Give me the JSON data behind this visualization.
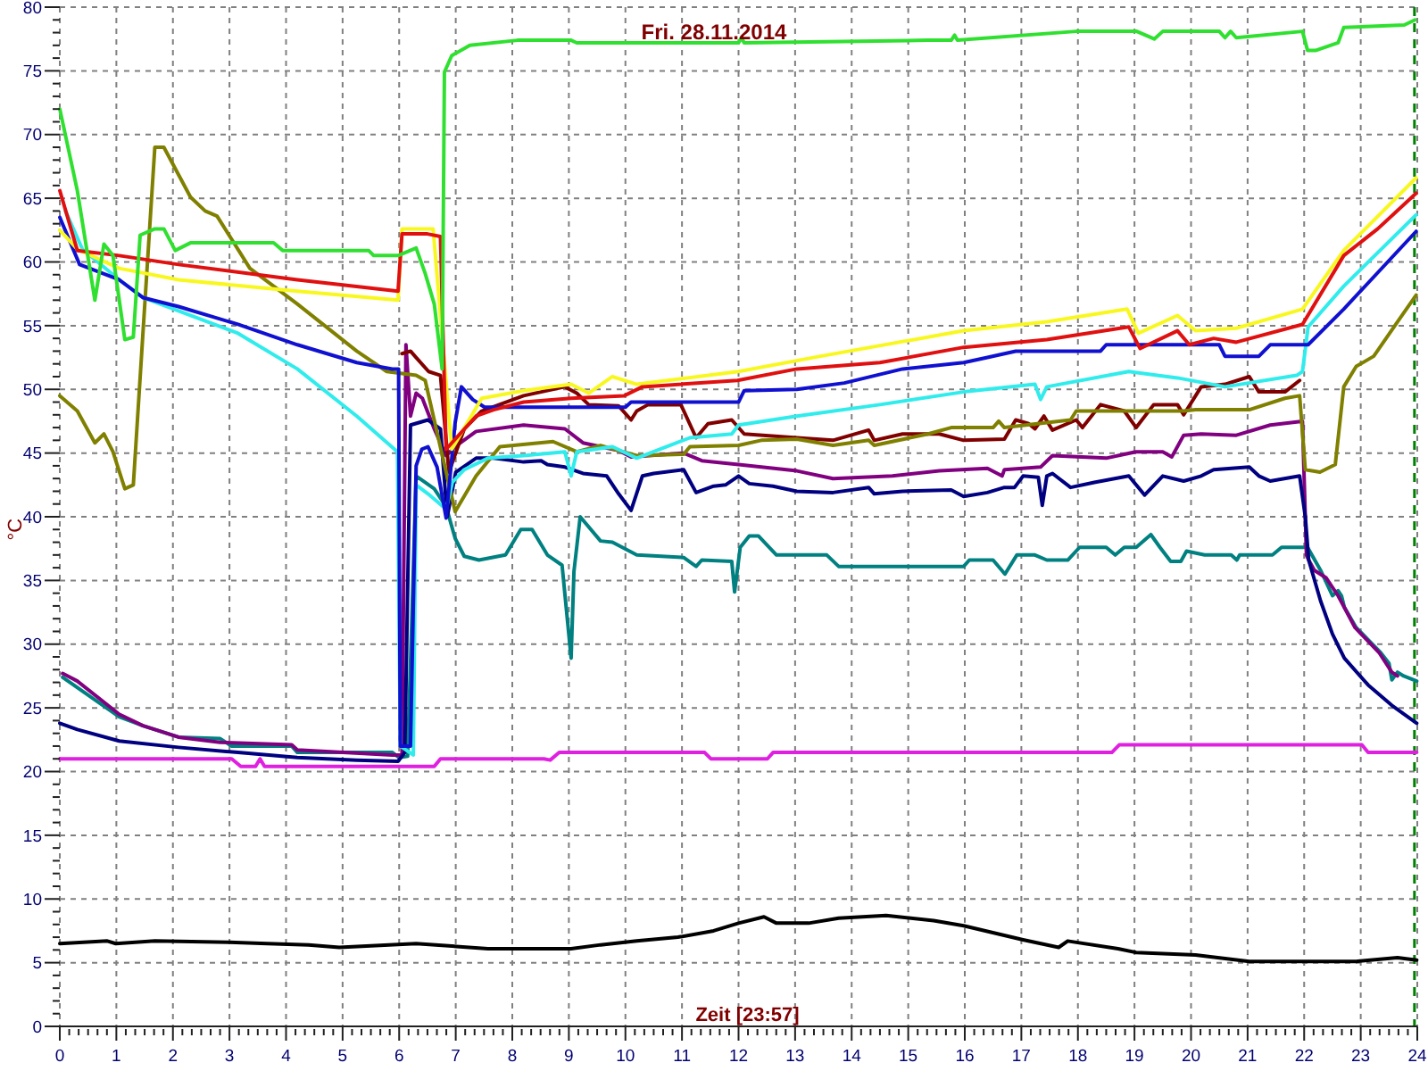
{
  "chart_data": {
    "type": "line",
    "title": "Fri. 28.11.2014",
    "xlabel": "Zeit [23:57]",
    "ylabel": "°C",
    "xlim": [
      0,
      24
    ],
    "ylim": [
      0,
      80
    ],
    "grid": true,
    "xticks": [
      0,
      {
        "value": 0.1667,
        "label": null
      },
      {
        "value": 0.3333,
        "label": null
      },
      {
        "value": 0.5,
        "label": null
      },
      {
        "value": 0.6667,
        "label": null
      },
      {
        "value": 0.8333,
        "label": null
      },
      1,
      {
        "value": 1.1667,
        "label": null
      },
      {
        "value": 1.3333,
        "label": null
      },
      {
        "value": 1.5,
        "label": null
      },
      {
        "value": 1.6667,
        "label": null
      },
      {
        "value": 1.8333,
        "label": null
      },
      2,
      {
        "value": 2.1667,
        "label": null
      },
      {
        "value": 2.3333,
        "label": null
      },
      {
        "value": 2.5,
        "label": null
      },
      {
        "value": 2.6667,
        "label": null
      },
      {
        "value": 2.8333,
        "label": null
      },
      3,
      {
        "value": 3.1667,
        "label": null
      },
      {
        "value": 3.3333,
        "label": null
      },
      {
        "value": 3.5,
        "label": null
      },
      {
        "value": 3.6667,
        "label": null
      },
      {
        "value": 3.8333,
        "label": null
      },
      4,
      {
        "value": 4.1667,
        "label": null
      },
      {
        "value": 4.3333,
        "label": null
      },
      {
        "value": 4.5,
        "label": null
      },
      {
        "value": 4.6667,
        "label": null
      },
      {
        "value": 4.8333,
        "label": null
      },
      5,
      {
        "value": 5.1667,
        "label": null
      },
      {
        "value": 5.3333,
        "label": null
      },
      {
        "value": 5.5,
        "label": null
      },
      {
        "value": 5.6667,
        "label": null
      },
      {
        "value": 5.8333,
        "label": null
      },
      6,
      {
        "value": 6.1667,
        "label": null
      },
      {
        "value": 6.3333,
        "label": null
      },
      {
        "value": 6.5,
        "label": null
      },
      {
        "value": 6.6667,
        "label": null
      },
      {
        "value": 6.8333,
        "label": null
      },
      7,
      {
        "value": 7.1667,
        "label": null
      },
      {
        "value": 7.3333,
        "label": null
      },
      {
        "value": 7.5,
        "label": null
      },
      {
        "value": 7.6667,
        "label": null
      },
      {
        "value": 7.8333,
        "label": null
      },
      8,
      {
        "value": 8.1667,
        "label": null
      },
      {
        "value": 8.3333,
        "label": null
      },
      {
        "value": 8.5,
        "label": null
      },
      {
        "value": 8.6667,
        "label": null
      },
      {
        "value": 8.8333,
        "label": null
      },
      9,
      {
        "value": 9.1667,
        "label": null
      },
      {
        "value": 9.3333,
        "label": null
      },
      {
        "value": 9.5,
        "label": null
      },
      {
        "value": 9.6667,
        "label": null
      },
      {
        "value": 9.8333,
        "label": null
      },
      10,
      {
        "value": 10.1667,
        "label": null
      },
      {
        "value": 10.3333,
        "label": null
      },
      {
        "value": 10.5,
        "label": null
      },
      {
        "value": 10.6667,
        "label": null
      },
      {
        "value": 10.8333,
        "label": null
      },
      11,
      {
        "value": 11.1667,
        "label": null
      },
      {
        "value": 11.3333,
        "label": null
      },
      {
        "value": 11.5,
        "label": null
      },
      {
        "value": 11.6667,
        "label": null
      },
      {
        "value": 11.8333,
        "label": null
      },
      12,
      {
        "value": 12.1667,
        "label": null
      },
      {
        "value": 12.3333,
        "label": null
      },
      {
        "value": 12.5,
        "label": null
      },
      {
        "value": 12.6667,
        "label": null
      },
      {
        "value": 12.8333,
        "label": null
      },
      13,
      {
        "value": 13.1667,
        "label": null
      },
      {
        "value": 13.3333,
        "label": null
      },
      {
        "value": 13.5,
        "label": null
      },
      {
        "value": 13.6667,
        "label": null
      },
      {
        "value": 13.8333,
        "label": null
      },
      14,
      {
        "value": 14.1667,
        "label": null
      },
      {
        "value": 14.3333,
        "label": null
      },
      {
        "value": 14.5,
        "label": null
      },
      {
        "value": 14.6667,
        "label": null
      },
      {
        "value": 14.8333,
        "label": null
      },
      15,
      {
        "value": 15.1667,
        "label": null
      },
      {
        "value": 15.3333,
        "label": null
      },
      {
        "value": 15.5,
        "label": null
      },
      {
        "value": 15.6667,
        "label": null
      },
      {
        "value": 15.8333,
        "label": null
      },
      16,
      {
        "value": 16.1667,
        "label": null
      },
      {
        "value": 16.3333,
        "label": null
      },
      {
        "value": 16.5,
        "label": null
      },
      {
        "value": 16.6667,
        "label": null
      },
      {
        "value": 16.8333,
        "label": null
      },
      17,
      {
        "value": 17.1667,
        "label": null
      },
      {
        "value": 17.3333,
        "label": null
      },
      {
        "value": 17.5,
        "label": null
      },
      {
        "value": 17.6667,
        "label": null
      },
      {
        "value": 17.8333,
        "label": null
      },
      18,
      {
        "value": 18.1667,
        "label": null
      },
      {
        "value": 18.3333,
        "label": null
      },
      {
        "value": 18.5,
        "label": null
      },
      {
        "value": 18.6667,
        "label": null
      },
      {
        "value": 18.8333,
        "label": null
      },
      19,
      {
        "value": 19.1667,
        "label": null
      },
      {
        "value": 19.3333,
        "label": null
      },
      {
        "value": 19.5,
        "label": null
      },
      {
        "value": 19.6667,
        "label": null
      },
      {
        "value": 19.8333,
        "label": null
      },
      20,
      {
        "value": 20.1667,
        "label": null
      },
      {
        "value": 20.3333,
        "label": null
      },
      {
        "value": 20.5,
        "label": null
      },
      {
        "value": 20.6667,
        "label": null
      },
      {
        "value": 20.8333,
        "label": null
      },
      21,
      {
        "value": 21.1667,
        "label": null
      },
      {
        "value": 21.3333,
        "label": null
      },
      {
        "value": 21.5,
        "label": null
      },
      {
        "value": 21.6667,
        "label": null
      },
      {
        "value": 21.8333,
        "label": null
      },
      22,
      {
        "value": 22.1667,
        "label": null
      },
      {
        "value": 22.3333,
        "label": null
      },
      {
        "value": 22.5,
        "label": null
      },
      {
        "value": 22.6667,
        "label": null
      },
      {
        "value": 22.8333,
        "label": null
      },
      23,
      {
        "value": 23.1667,
        "label": null
      },
      {
        "value": 23.3333,
        "label": null
      },
      {
        "value": 23.5,
        "label": null
      },
      {
        "value": 23.6667,
        "label": null
      },
      {
        "value": 23.8333,
        "label": null
      },
      24
    ],
    "yticks": [
      0,
      {
        "value": 1,
        "label": null
      },
      {
        "value": 2,
        "label": null
      },
      {
        "value": 3,
        "label": null
      },
      {
        "value": 4,
        "label": null
      },
      5,
      {
        "value": 6,
        "label": null
      },
      {
        "value": 7,
        "label": null
      },
      {
        "value": 8,
        "label": null
      },
      {
        "value": 9,
        "label": null
      },
      10,
      {
        "value": 11,
        "label": null
      },
      {
        "value": 12,
        "label": null
      },
      {
        "value": 13,
        "label": null
      },
      {
        "value": 14,
        "label": null
      },
      15,
      {
        "value": 16,
        "label": null
      },
      {
        "value": 17,
        "label": null
      },
      {
        "value": 18,
        "label": null
      },
      {
        "value": 19,
        "label": null
      },
      20,
      {
        "value": 21,
        "label": null
      },
      {
        "value": 22,
        "label": null
      },
      {
        "value": 23,
        "label": null
      },
      {
        "value": 24,
        "label": null
      },
      25,
      {
        "value": 26,
        "label": null
      },
      {
        "value": 27,
        "label": null
      },
      {
        "value": 28,
        "label": null
      },
      {
        "value": 29,
        "label": null
      },
      30,
      {
        "value": 31,
        "label": null
      },
      {
        "value": 32,
        "label": null
      },
      {
        "value": 33,
        "label": null
      },
      {
        "value": 34,
        "label": null
      },
      35,
      {
        "value": 36,
        "label": null
      },
      {
        "value": 37,
        "label": null
      },
      {
        "value": 38,
        "label": null
      },
      {
        "value": 39,
        "label": null
      },
      40,
      {
        "value": 41,
        "label": null
      },
      {
        "value": 42,
        "label": null
      },
      {
        "value": 43,
        "label": null
      },
      {
        "value": 44,
        "label": null
      },
      45,
      {
        "value": 46,
        "label": null
      },
      {
        "value": 47,
        "label": null
      },
      {
        "value": 48,
        "label": null
      },
      {
        "value": 49,
        "label": null
      },
      50,
      {
        "value": 51,
        "label": null
      },
      {
        "value": 52,
        "label": null
      },
      {
        "value": 53,
        "label": null
      },
      {
        "value": 54,
        "label": null
      },
      55,
      {
        "value": 56,
        "label": null
      },
      {
        "value": 57,
        "label": null
      },
      {
        "value": 58,
        "label": null
      },
      {
        "value": 59,
        "label": null
      },
      60,
      {
        "value": 61,
        "label": null
      },
      {
        "value": 62,
        "label": null
      },
      {
        "value": 63,
        "label": null
      },
      {
        "value": 64,
        "label": null
      },
      65,
      {
        "value": 66,
        "label": null
      },
      {
        "value": 67,
        "label": null
      },
      {
        "value": 68,
        "label": null
      },
      {
        "value": 69,
        "label": null
      },
      70,
      {
        "value": 71,
        "label": null
      },
      {
        "value": 72,
        "label": null
      },
      {
        "value": 73,
        "label": null
      },
      {
        "value": 74,
        "label": null
      },
      75,
      {
        "value": 76,
        "label": null
      },
      {
        "value": 77,
        "label": null
      },
      {
        "value": 78,
        "label": null
      },
      {
        "value": 79,
        "label": null
      },
      80
    ],
    "ref_lines": [
      {
        "axis": "x",
        "value": 23.95,
        "color": "#008000",
        "line_style": "dashed"
      }
    ],
    "series": [
      {
        "color": "#000000",
        "x": [
          0,
          0.84,
          0.99,
          1.68,
          3.0,
          3.67,
          4.4,
          4.94,
          6.3,
          7.57,
          9.04,
          9.56,
          10.2,
          10.93,
          11.56,
          12.0,
          12.45,
          12.67,
          13.24,
          13.77,
          14.61,
          15.45,
          15.98,
          17.03,
          17.66,
          17.82,
          18.71,
          19.03,
          20.08,
          21.03,
          22.08,
          22.92,
          23.65,
          23.99
        ],
        "values": [
          6.5,
          6.7,
          6.5,
          6.7,
          6.6,
          6.5,
          6.4,
          6.2,
          6.5,
          6.1,
          6.1,
          6.4,
          6.7,
          7,
          7.5,
          8.1,
          8.6,
          8.1,
          8.1,
          8.5,
          8.7,
          8.3,
          7.9,
          6.8,
          6.2,
          6.7,
          6.1,
          5.8,
          5.6,
          5.1,
          5.1,
          5.1,
          5.4,
          5.2
        ]
      },
      {
        "color": "#e020e0",
        "x": [
          0,
          3.04,
          3.2,
          3.46,
          3.54,
          3.62,
          6.62,
          6.73,
          8.56,
          8.67,
          8.83,
          11.4,
          11.51,
          12.51,
          12.61,
          18.6,
          18.73,
          23.02,
          23.13,
          23.99
        ],
        "values": [
          21,
          21,
          20.4,
          20.4,
          21,
          20.4,
          20.4,
          21,
          21,
          20.9,
          21.5,
          21.5,
          21,
          21,
          21.5,
          21.5,
          22.1,
          22.1,
          21.5,
          21.5
        ]
      },
      {
        "color": "#008080",
        "x": [
          0.05,
          1.05,
          1.47,
          2.1,
          2.83,
          3.04,
          4.1,
          4.2,
          5.88,
          6.0,
          6.15,
          6.3,
          6.62,
          6.83,
          6.99,
          7.15,
          7.41,
          7.88,
          8.15,
          8.35,
          8.62,
          8.88,
          9.04,
          9.09,
          9.2,
          9.56,
          9.77,
          10.2,
          11.03,
          11.25,
          11.35,
          11.88,
          11.93,
          12.03,
          12.19,
          12.35,
          12.67,
          13.56,
          13.77,
          15.98,
          16.08,
          16.5,
          16.71,
          16.92,
          17.24,
          17.45,
          17.82,
          18.03,
          18.5,
          18.66,
          18.82,
          19.03,
          19.29,
          19.45,
          19.64,
          19.82,
          19.92,
          20.24,
          20.71,
          20.81,
          20.86,
          21.44,
          21.6,
          22.06,
          22.29,
          22.5,
          22.6,
          22.66,
          22.71,
          22.92,
          23.34,
          23.5,
          23.55,
          23.65,
          23.76,
          23.99
        ],
        "values": [
          27.4,
          24.3,
          23.6,
          22.7,
          22.6,
          22,
          22,
          21.5,
          21.5,
          21.1,
          21.2,
          43.2,
          42.2,
          40.8,
          38.3,
          36.9,
          36.6,
          37,
          39,
          39,
          37,
          36.2,
          28.9,
          35.7,
          40,
          38.1,
          38,
          37,
          36.8,
          36.1,
          36.6,
          36.5,
          34.1,
          37.6,
          38.5,
          38.5,
          37,
          37,
          36.1,
          36.1,
          36.6,
          36.6,
          35.5,
          37,
          37,
          36.6,
          36.6,
          37.6,
          37.6,
          37,
          37.6,
          37.6,
          38.6,
          37.6,
          36.5,
          36.5,
          37.3,
          37,
          37,
          36.6,
          37,
          37,
          37.6,
          37.6,
          35.8,
          33.8,
          34.2,
          33.8,
          32.9,
          31.3,
          29.4,
          28.5,
          27.2,
          27.8,
          27.5,
          27.1
        ]
      },
      {
        "color": "#800080",
        "x": [
          0.05,
          0.31,
          1.05,
          1.47,
          2.1,
          2.83,
          4.1,
          4.2,
          5.88,
          6.05,
          6.12,
          6.2,
          6.3,
          6.41,
          6.62,
          6.83,
          6.99,
          7.36,
          8.2,
          8.93,
          9.25,
          9.88,
          10.1,
          11.03,
          11.35,
          12.0,
          13.03,
          13.67,
          14.72,
          15.55,
          16.4,
          16.66,
          16.7,
          17.34,
          17.55,
          18.5,
          19.03,
          19.5,
          19.66,
          19.87,
          20.18,
          20.8,
          21.4,
          21.97,
          22.04,
          22.08,
          22.18,
          22.39,
          22.6,
          22.9,
          23.33,
          23.55,
          23.65
        ],
        "values": [
          27.7,
          27.1,
          24.5,
          23.6,
          22.7,
          22.3,
          22.1,
          21.7,
          21.3,
          21.3,
          53.5,
          47.9,
          49.7,
          49.3,
          46.9,
          44.8,
          45.5,
          46.7,
          47.2,
          46.9,
          45.8,
          45.2,
          44.7,
          45,
          44.4,
          44.1,
          43.6,
          43,
          43.2,
          43.6,
          43.8,
          43.2,
          43.7,
          43.9,
          44.8,
          44.6,
          45.1,
          45.1,
          44.7,
          46.4,
          46.5,
          46.4,
          47.2,
          47.5,
          37,
          36.6,
          35.8,
          35.2,
          33.8,
          31.3,
          29.3,
          27.8,
          27.5
        ]
      },
      {
        "color": "#000080",
        "x": [
          0,
          0.31,
          1.05,
          2.1,
          3.15,
          4.2,
          5.25,
          5.98,
          6.1,
          6.2,
          6.51,
          6.73,
          6.85,
          7.0,
          7.36,
          7.67,
          8.2,
          8.51,
          8.62,
          8.93,
          9.25,
          9.67,
          9.88,
          10.1,
          10.3,
          10.5,
          11.03,
          11.25,
          11.56,
          11.77,
          12.0,
          12.19,
          12.61,
          13.03,
          13.67,
          14.3,
          14.4,
          14.9,
          15.76,
          15.98,
          16.4,
          16.7,
          16.88,
          17.03,
          17.3,
          17.37,
          17.45,
          17.55,
          17.87,
          18.29,
          18.9,
          19.18,
          19.5,
          19.87,
          20.18,
          20.4,
          21.03,
          21.2,
          21.4,
          21.92,
          22.02,
          22.08,
          22.29,
          22.5,
          22.71,
          23.13,
          23.55,
          23.99
        ],
        "values": [
          23.8,
          23.3,
          22.4,
          21.9,
          21.5,
          21.1,
          20.9,
          20.8,
          21.5,
          47.2,
          47.6,
          46.9,
          40,
          43.5,
          44.6,
          44.6,
          44.3,
          44.4,
          44.1,
          43.9,
          43.4,
          43.2,
          41.8,
          40.5,
          43.2,
          43.4,
          43.7,
          41.9,
          42.4,
          42.5,
          43.2,
          42.6,
          42.4,
          42,
          41.9,
          42.3,
          41.8,
          42,
          42.1,
          41.6,
          41.9,
          42.3,
          42.3,
          43.2,
          43.1,
          40.9,
          43.2,
          43.4,
          42.3,
          42.7,
          43.2,
          41.7,
          43.2,
          42.8,
          43.2,
          43.7,
          43.9,
          43.2,
          42.8,
          43.2,
          40,
          36.6,
          33.4,
          30.8,
          28.9,
          26.8,
          25.2,
          23.8
        ]
      },
      {
        "color": "#800000",
        "x": [
          6.05,
          6.2,
          6.3,
          6.52,
          6.73,
          6.88,
          7.15,
          7.46,
          8.2,
          8.93,
          9.14,
          9.35,
          9.88,
          10.1,
          10.2,
          10.4,
          10.98,
          11.25,
          11.46,
          11.88,
          12.1,
          13.03,
          13.67,
          14.3,
          14.4,
          14.9,
          15.55,
          15.98,
          16.7,
          16.9,
          17.13,
          17.24,
          17.4,
          17.55,
          17.97,
          18.08,
          18.4,
          18.82,
          19.03,
          19.34,
          19.76,
          19.87,
          20.18,
          20.6,
          21.03,
          21.2,
          21.66,
          21.92
        ],
        "values": [
          52.8,
          53,
          52.5,
          51.4,
          51.1,
          43.5,
          46.9,
          48.3,
          49.5,
          50.2,
          49.7,
          48.8,
          48.7,
          47.6,
          48.3,
          48.8,
          48.8,
          46.2,
          47.3,
          47.6,
          46.5,
          46.2,
          46,
          46.8,
          46,
          46.5,
          46.5,
          46,
          46.1,
          47.6,
          47.3,
          46.9,
          47.9,
          46.8,
          47.6,
          47,
          48.8,
          48.3,
          47,
          48.8,
          48.8,
          48,
          50.2,
          50.4,
          51,
          49.8,
          49.8,
          50.7
        ]
      },
      {
        "color": "#808000",
        "x": [
          0,
          0.31,
          0.62,
          0.78,
          0.94,
          1.15,
          1.3,
          1.47,
          1.68,
          1.84,
          2.31,
          2.57,
          2.78,
          3.36,
          4.2,
          5.25,
          5.78,
          6.3,
          6.46,
          6.99,
          7.36,
          7.78,
          8.72,
          9.14,
          9.56,
          10.2,
          11.03,
          11.14,
          12.0,
          12.4,
          13.03,
          13.67,
          14.3,
          14.4,
          15.35,
          15.76,
          16.5,
          16.6,
          16.7,
          17.87,
          17.97,
          19.87,
          20.08,
          21.03,
          21.66,
          21.92,
          22.02,
          22.28,
          22.55,
          22.7,
          22.92,
          23.23,
          23.65,
          23.98
        ],
        "values": [
          49.5,
          48.3,
          45.8,
          46.5,
          45.1,
          42.2,
          42.5,
          54.4,
          69,
          69,
          65.1,
          64,
          63.6,
          59.5,
          56.7,
          53,
          51.4,
          51.1,
          50.7,
          40.4,
          43.2,
          45.5,
          45.9,
          45.1,
          45.6,
          44.8,
          44.9,
          45.5,
          45.6,
          46,
          46.1,
          45.6,
          46,
          45.6,
          46.5,
          47,
          47,
          47.5,
          47,
          47.6,
          48.3,
          48.3,
          48.4,
          48.4,
          49.3,
          49.5,
          43.7,
          43.5,
          44.1,
          50.2,
          51.8,
          52.6,
          55.3,
          57.4
        ]
      },
      {
        "color": "#30ecec",
        "x": [
          0.1,
          0.4,
          1.05,
          1.47,
          3.15,
          4.2,
          5.25,
          5.97,
          6.02,
          6.25,
          6.3,
          6.51,
          6.83,
          6.94,
          7.15,
          7.57,
          8.2,
          8.93,
          9.04,
          9.14,
          9.77,
          10.2,
          11.14,
          11.88,
          12.0,
          13.03,
          14.5,
          15.98,
          17.24,
          17.34,
          17.45,
          18.9,
          19.76,
          20.6,
          21.87,
          21.97,
          22.07,
          22.7,
          23.98
        ],
        "values": [
          64,
          61,
          58.6,
          57.2,
          54.4,
          51.6,
          47.9,
          45.1,
          22,
          21.3,
          42.5,
          41.8,
          40.6,
          42.7,
          43.7,
          44.6,
          44.8,
          45.1,
          43.2,
          45.1,
          45.5,
          44.6,
          46.2,
          46.5,
          47.2,
          47.9,
          48.8,
          49.8,
          50.4,
          49.2,
          50.2,
          51.4,
          50.9,
          50.2,
          51.1,
          51.4,
          54.9,
          58.1,
          63.7
        ]
      },
      {
        "color": "#1010d0",
        "x": [
          0,
          0.35,
          1.05,
          1.47,
          2.1,
          3.15,
          4.2,
          5.25,
          5.88,
          5.99,
          6.02,
          6.2,
          6.3,
          6.4,
          6.51,
          6.67,
          6.83,
          6.99,
          7.1,
          7.3,
          7.51,
          10.0,
          10.1,
          12.0,
          12.1,
          13.03,
          13.87,
          14.9,
          15.98,
          16.4,
          16.9,
          18.4,
          18.5,
          20.5,
          20.6,
          21.2,
          21.4,
          22.07,
          22.7,
          23.98
        ],
        "values": [
          63.5,
          59.8,
          58.6,
          57.2,
          56.5,
          55.1,
          53.5,
          52.1,
          51.6,
          51.6,
          22,
          22,
          44,
          45.3,
          45.5,
          43.9,
          39.9,
          47.4,
          50.2,
          49.2,
          48.6,
          48.6,
          49,
          49,
          49.9,
          50,
          50.5,
          51.6,
          52.1,
          52.5,
          53,
          53,
          53.5,
          53.5,
          52.6,
          52.6,
          53.5,
          53.5,
          56.3,
          62.4
        ]
      },
      {
        "color": "#f8f820",
        "x": [
          0,
          0.31,
          1.05,
          2.1,
          4.2,
          5.98,
          6.05,
          6.6,
          6.93,
          7.46,
          8.2,
          9.04,
          9.35,
          9.77,
          10.2,
          12.0,
          13.45,
          15.98,
          17.45,
          18.87,
          19.07,
          19.76,
          20.08,
          20.8,
          21.97,
          22.7,
          23.98
        ],
        "values": [
          62.5,
          61,
          59.5,
          58.6,
          57.7,
          57,
          62.6,
          62.6,
          45.3,
          49.3,
          49.9,
          50.4,
          49.7,
          51,
          50.4,
          51.4,
          52.6,
          54.6,
          55.3,
          56.3,
          54.4,
          55.8,
          54.6,
          54.8,
          56.3,
          60.9,
          66.6
        ]
      },
      {
        "color": "#e01010",
        "x": [
          0,
          0.31,
          1.05,
          2.1,
          4.2,
          5.98,
          6.05,
          6.5,
          6.73,
          6.83,
          7.36,
          7.67,
          8.2,
          9.04,
          9.98,
          10.3,
          11.98,
          13.03,
          14.5,
          15.98,
          17.45,
          18.9,
          19.1,
          19.76,
          19.97,
          20.4,
          20.8,
          21.97,
          22.7,
          23.3,
          23.98
        ],
        "values": [
          65.6,
          60.9,
          60.5,
          59.8,
          58.6,
          57.7,
          62.2,
          62.2,
          62,
          45.3,
          47.9,
          48.4,
          49,
          49.3,
          49.5,
          50.2,
          50.7,
          51.6,
          52.1,
          53.3,
          53.9,
          54.9,
          53.2,
          54.6,
          53.5,
          54,
          53.7,
          55.1,
          60.5,
          62.6,
          65.4
        ]
      },
      {
        "color": "#30e030",
        "x": [
          0,
          0.31,
          0.62,
          0.78,
          0.94,
          1.15,
          1.3,
          1.42,
          1.68,
          1.84,
          2.04,
          2.31,
          3.78,
          3.94,
          5.46,
          5.55,
          5.98,
          6.3,
          6.46,
          6.62,
          6.76,
          6.8,
          6.93,
          7.25,
          8.09,
          9.04,
          9.14,
          12.0,
          12.05,
          12.1,
          15.35,
          15.76,
          15.82,
          15.87,
          17.97,
          19.04,
          19.35,
          19.5,
          20.5,
          20.6,
          20.7,
          20.8,
          21.97,
          22.06,
          22.2,
          22.6,
          22.7,
          23.77,
          23.96
        ],
        "values": [
          72,
          65.6,
          57,
          61.4,
          60.5,
          53.9,
          54.1,
          62.1,
          62.6,
          62.6,
          60.9,
          61.5,
          61.5,
          60.9,
          60.9,
          60.5,
          60.5,
          61.1,
          59.1,
          56.7,
          51.6,
          74.9,
          76.2,
          77,
          77.4,
          77.4,
          77.2,
          77.2,
          77.6,
          77.2,
          77.4,
          77.4,
          77.8,
          77.4,
          78.1,
          78.1,
          77.5,
          78.1,
          78.1,
          77.6,
          78.1,
          77.6,
          78.1,
          76.6,
          76.6,
          77.2,
          78.4,
          78.6,
          79
        ]
      }
    ]
  }
}
